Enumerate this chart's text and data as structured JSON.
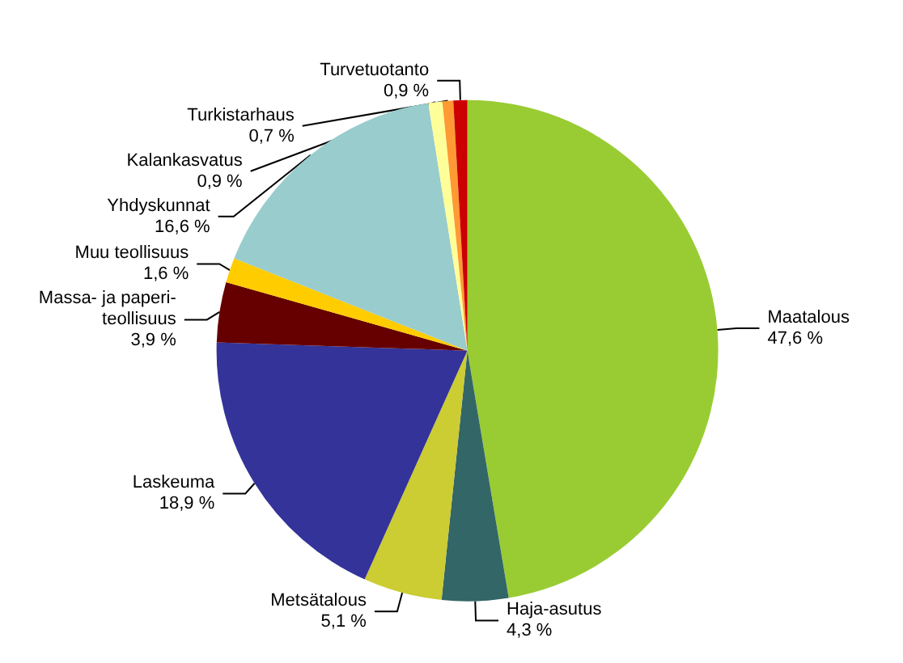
{
  "chart_data": {
    "type": "pie",
    "categories": [
      "Maatalous",
      "Haja-asutus",
      "Metsätalous",
      "Laskeuma",
      "Massa- ja paperi-\nteollisuus",
      "Muu teollisuus",
      "Yhdyskunnat",
      "Kalankasvatus",
      "Turkistarhaus",
      "Turvetuotanto"
    ],
    "values": [
      47.6,
      4.3,
      5.1,
      18.9,
      3.9,
      1.6,
      16.6,
      0.9,
      0.7,
      0.9
    ],
    "value_labels": [
      "47,6 %",
      "4,3 %",
      "5,1 %",
      "18,9 %",
      "3,9 %",
      "1,6 %",
      "16,6 %",
      "0,9 %",
      "0,7 %",
      "0,9 %"
    ],
    "colors": [
      "#99cc33",
      "#336666",
      "#cccc33",
      "#333399",
      "#660000",
      "#ffcc00",
      "#99cccc",
      "#ffff99",
      "#ff9933",
      "#cc0000"
    ],
    "legend": false
  }
}
